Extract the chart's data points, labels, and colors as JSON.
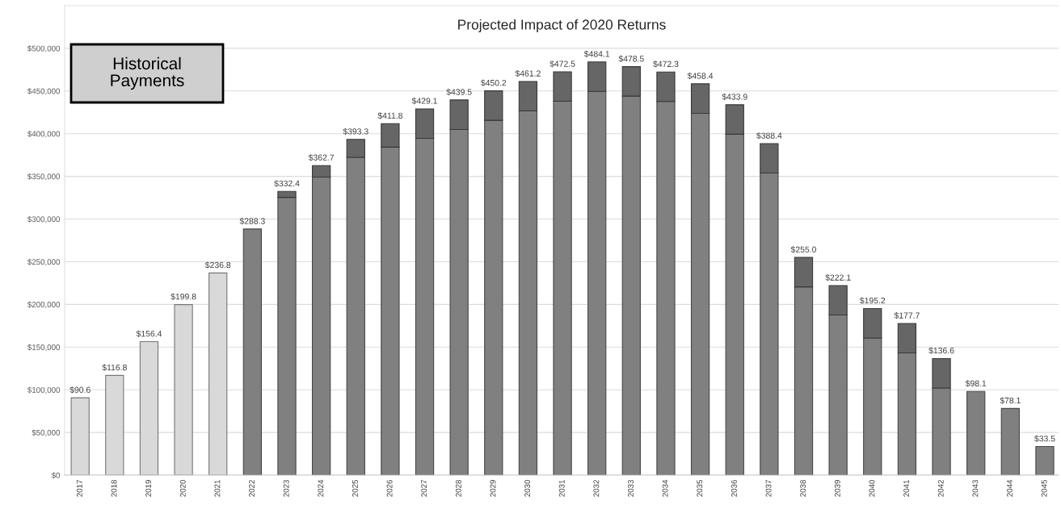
{
  "chart_data": {
    "type": "bar",
    "title": "Projected Impact of 2020 Returns",
    "categories": [
      "2017",
      "2018",
      "2019",
      "2020",
      "2021",
      "2022",
      "2023",
      "2024",
      "2025",
      "2026",
      "2027",
      "2028",
      "2029",
      "2030",
      "2031",
      "2032",
      "2033",
      "2034",
      "2035",
      "2036",
      "2037",
      "2038",
      "2039",
      "2040",
      "2041",
      "2042",
      "2043",
      "2044",
      "2045"
    ],
    "stacked": true,
    "series": [
      {
        "color": "#d9d9d9",
        "values": [
          90600,
          116800,
          156400,
          199800,
          236800,
          null,
          null,
          null,
          null,
          null,
          null,
          null,
          null,
          null,
          null,
          null,
          null,
          null,
          null,
          null,
          null,
          null,
          null,
          null,
          null,
          null,
          null,
          null,
          null
        ]
      },
      {
        "color": "#808080",
        "values": [
          null,
          null,
          null,
          null,
          null,
          288300,
          325400,
          349200,
          372300,
          384300,
          394600,
          405000,
          415700,
          426700,
          438000,
          449600,
          444000,
          437800,
          423900,
          399400,
          353900,
          220500,
          187600,
          160700,
          143200,
          102100,
          98100,
          78100,
          33500
        ]
      },
      {
        "color": "#666666",
        "values": [
          null,
          null,
          null,
          null,
          null,
          null,
          7000,
          13500,
          21000,
          27500,
          34500,
          34500,
          34500,
          34500,
          34500,
          34500,
          34500,
          34500,
          34500,
          34500,
          34500,
          34500,
          34500,
          34500,
          34500,
          34500,
          null,
          null,
          null
        ]
      }
    ],
    "ylim": [
      0,
      550000
    ],
    "yticks": [
      {
        "value": 0,
        "label": "$0"
      },
      {
        "value": 50000,
        "label": "$50,000"
      },
      {
        "value": 100000,
        "label": "$100,000"
      },
      {
        "value": 150000,
        "label": "$150,000"
      },
      {
        "value": 200000,
        "label": "$200,000"
      },
      {
        "value": 250000,
        "label": "$250,000"
      },
      {
        "value": 300000,
        "label": "$300,000"
      },
      {
        "value": 350000,
        "label": "$350,000"
      },
      {
        "value": 400000,
        "label": "$400,000"
      },
      {
        "value": 450000,
        "label": "$450,000"
      },
      {
        "value": 500000,
        "label": "$500,000"
      }
    ],
    "grid": "y",
    "annotations": [
      "Historical\nPayments",
      {
        "text": "$90.6",
        "x": "2017",
        "y": 90600
      },
      {
        "text": "$116.8",
        "x": "2018",
        "y": 116800
      },
      {
        "text": "$156.4",
        "x": "2019",
        "y": 156400
      },
      {
        "text": "$199.8",
        "x": "2020",
        "y": 199800
      },
      {
        "text": "$236.8",
        "x": "2021",
        "y": 236800
      },
      {
        "text": "$288.3",
        "x": "2022",
        "y": 288300
      },
      {
        "text": "$332.4",
        "x": "2023",
        "y": 332400
      },
      {
        "text": "$362.7",
        "x": "2024",
        "y": 362700
      },
      {
        "text": "$393.3",
        "x": "2025",
        "y": 393300
      },
      {
        "text": "$411.8",
        "x": "2026",
        "y": 411800
      },
      {
        "text": "$429.1",
        "x": "2027",
        "y": 429100
      },
      {
        "text": "$439.5",
        "x": "2028",
        "y": 439500
      },
      {
        "text": "$450.2",
        "x": "2029",
        "y": 450200
      },
      {
        "text": "$461.2",
        "x": "2030",
        "y": 461200
      },
      {
        "text": "$472.5",
        "x": "2031",
        "y": 472500
      },
      {
        "text": "$484.1",
        "x": "2032",
        "y": 484100
      },
      {
        "text": "$478.5",
        "x": "2033",
        "y": 478500
      },
      {
        "text": "$472.3",
        "x": "2034",
        "y": 472300
      },
      {
        "text": "$458.4",
        "x": "2035",
        "y": 458400
      },
      {
        "text": "$433.9",
        "x": "2036",
        "y": 433900
      },
      {
        "text": "$388.4",
        "x": "2037",
        "y": 388400
      },
      {
        "text": "$255.0",
        "x": "2038",
        "y": 255000
      },
      {
        "text": "$222.1",
        "x": "2039",
        "y": 222100
      },
      {
        "text": "$195.2",
        "x": "2040",
        "y": 195200
      },
      {
        "text": "$177.7",
        "x": "2041",
        "y": 177700
      },
      {
        "text": "$136.6",
        "x": "2042",
        "y": 136600
      },
      {
        "text": "$98.1",
        "x": "2043",
        "y": 98100
      },
      {
        "text": "$78.1",
        "x": "2044",
        "y": 78100
      },
      {
        "text": "$33.5",
        "x": "2045",
        "y": 33500
      }
    ]
  }
}
